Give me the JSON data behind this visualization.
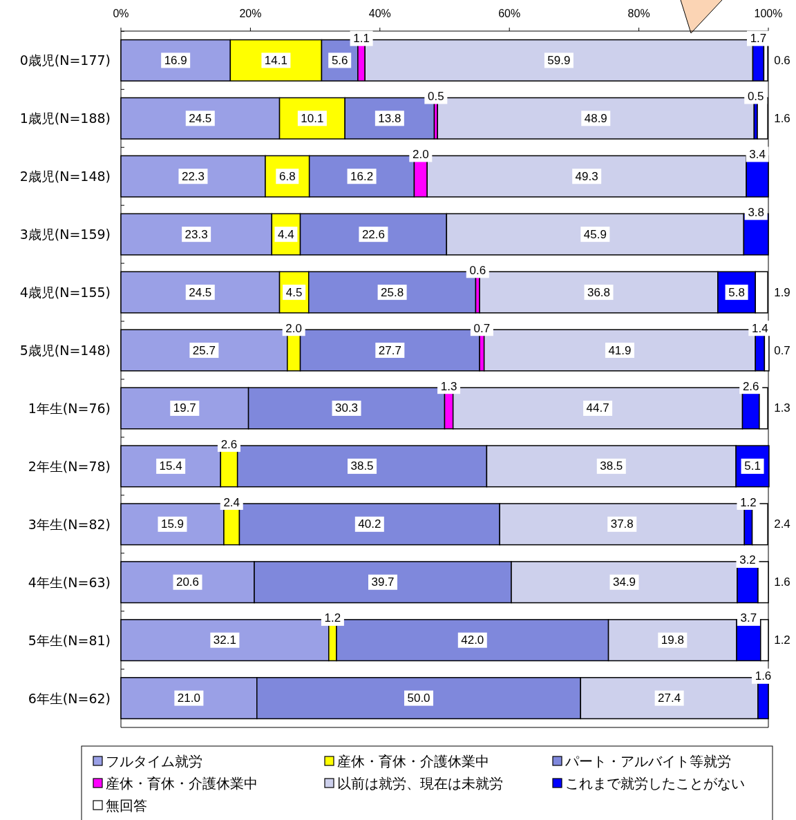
{
  "chart_data": {
    "type": "bar",
    "orientation": "horizontal",
    "stacked": true,
    "legend": "bottom",
    "grid": false,
    "categories": [
      "0歳児(N=177)",
      "1歳児(N=188)",
      "2歳児(N=148)",
      "3歳児(N=159)",
      "4歳児(N=155)",
      "5歳児(N=148)",
      "1年生(N=76)",
      "2年生(N=78)",
      "3年生(N=82)",
      "4年生(N=63)",
      "5年生(N=81)",
      "6年生(N=62)"
    ],
    "xlim": [
      0,
      100
    ],
    "xticks": [
      {
        "value": 0,
        "label": "0%"
      },
      {
        "value": 20,
        "label": "20%"
      },
      {
        "value": 40,
        "label": "40%"
      },
      {
        "value": 60,
        "label": "60%"
      },
      {
        "value": 80,
        "label": "80%"
      },
      {
        "value": 100,
        "label": "100%"
      }
    ],
    "series": [
      {
        "name": "フルタイム就労",
        "color": "#9aa0e6",
        "values": [
          16.9,
          24.5,
          22.3,
          23.3,
          24.5,
          25.7,
          19.7,
          15.4,
          15.9,
          20.6,
          32.1,
          21.0
        ],
        "value_labels": [
          "16.9",
          "24.5",
          "22.3",
          "23.3",
          "24.5",
          "25.7",
          "19.7",
          "15.4",
          "15.9",
          "20.6",
          "32.1",
          "21.0"
        ]
      },
      {
        "name": "産休・育休・介護休業中",
        "color": "#ffff00",
        "values": [
          14.1,
          10.1,
          6.8,
          4.4,
          4.5,
          2.0,
          null,
          2.6,
          2.4,
          null,
          1.2,
          null
        ],
        "value_labels": [
          "14.1",
          "10.1",
          "6.8",
          "4.4",
          "4.5",
          "2.0",
          null,
          "2.6",
          "2.4",
          null,
          "1.2",
          null
        ]
      },
      {
        "name": "パート・アルバイト等就労",
        "color": "#7f88dc",
        "values": [
          5.6,
          13.8,
          16.2,
          22.6,
          25.8,
          27.7,
          30.3,
          38.5,
          40.2,
          39.7,
          42.0,
          50.0
        ],
        "value_labels": [
          "5.6",
          "13.8",
          "16.2",
          "22.6",
          "25.8",
          "27.7",
          "30.3",
          "38.5",
          "40.2",
          "39.7",
          "42.0",
          "50.0"
        ]
      },
      {
        "name": "産休・育休・介護休業中",
        "color": "#ff00ff",
        "values": [
          1.1,
          0.5,
          2.0,
          null,
          0.6,
          0.7,
          1.3,
          null,
          null,
          null,
          null,
          null
        ],
        "value_labels": [
          "1.1",
          "0.5",
          "2.0",
          null,
          "0.6",
          "0.7",
          "1.3",
          null,
          null,
          null,
          null,
          null
        ]
      },
      {
        "name": "以前は就労、現在は未就労",
        "color": "#cdd0ec",
        "values": [
          59.9,
          48.9,
          49.3,
          45.9,
          36.8,
          41.9,
          44.7,
          38.5,
          37.8,
          34.9,
          19.8,
          27.4
        ],
        "value_labels": [
          "59.9",
          "48.9",
          "49.3",
          "45.9",
          "36.8",
          "41.9",
          "44.7",
          "38.5",
          "37.8",
          "34.9",
          "19.8",
          "27.4"
        ]
      },
      {
        "name": "これまで就労したことがない",
        "color": "#0000ff",
        "values": [
          1.7,
          0.5,
          3.4,
          3.8,
          5.8,
          1.4,
          2.6,
          5.1,
          1.2,
          3.2,
          3.7,
          1.6
        ],
        "value_labels": [
          "1.7",
          "0.5",
          "3.4",
          "3.8",
          "5.8",
          "1.4",
          "2.6",
          "5.1",
          "1.2",
          "3.2",
          "3.7",
          "1.6"
        ]
      },
      {
        "name": "無回答",
        "color": "#ffffff",
        "values": [
          0.6,
          1.6,
          null,
          null,
          1.9,
          0.7,
          1.3,
          null,
          2.4,
          1.6,
          1.2,
          null
        ],
        "value_labels": [
          "0.6",
          "1.6",
          null,
          null,
          "1.9",
          "0.7",
          "1.3",
          null,
          "2.4",
          "1.6",
          "1.2",
          null
        ]
      }
    ]
  }
}
